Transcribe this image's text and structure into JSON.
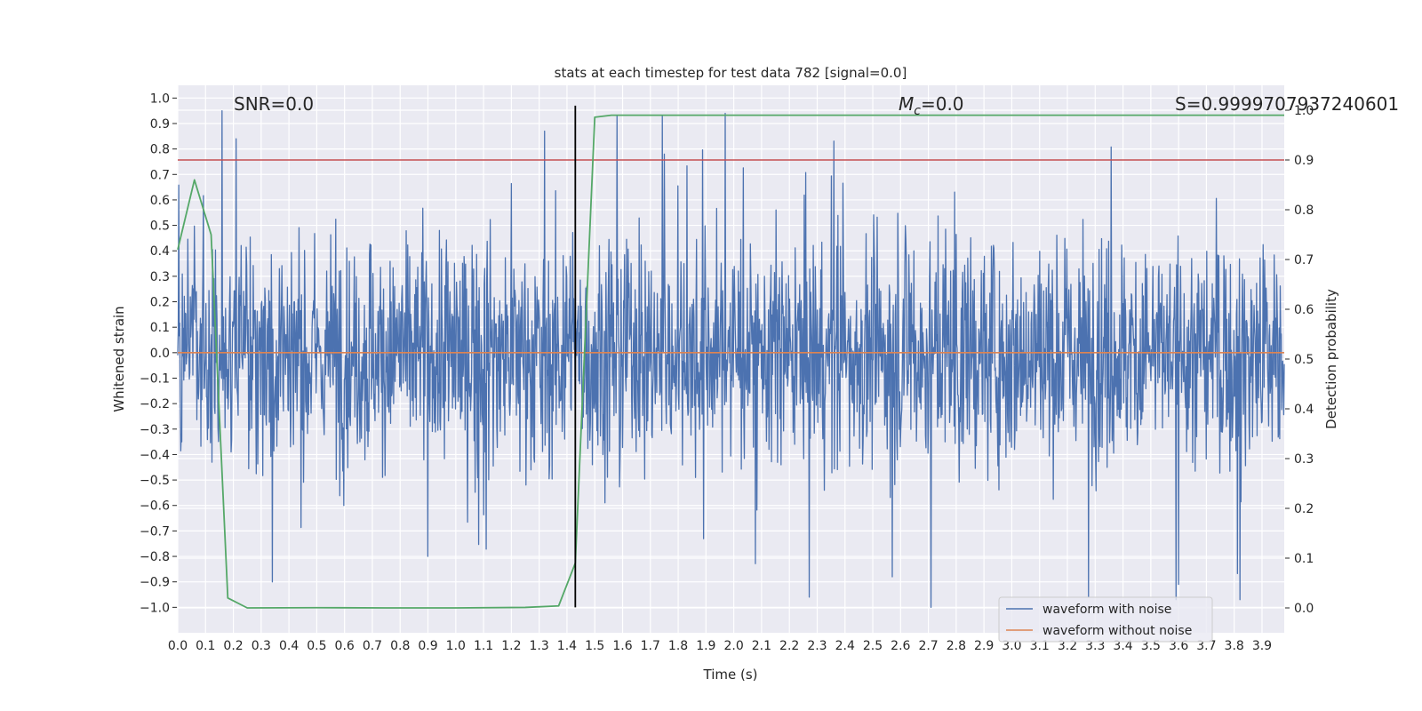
{
  "chart_data": {
    "type": "line",
    "title": "stats at each timestep for test data 782 [signal=0.0]",
    "xlabel": "Time (s)",
    "ylabel": "Whitened strain",
    "y2label": "Detection probability",
    "xlim": [
      0.0,
      3.98
    ],
    "ylim": [
      -1.1,
      1.05
    ],
    "y2lim": [
      -0.05,
      1.05
    ],
    "grid": true,
    "x_ticks": [
      "0.0",
      "0.1",
      "0.2",
      "0.3",
      "0.4",
      "0.5",
      "0.6",
      "0.7",
      "0.8",
      "0.9",
      "1.0",
      "1.1",
      "1.2",
      "1.3",
      "1.4",
      "1.5",
      "1.6",
      "1.7",
      "1.8",
      "1.9",
      "2.0",
      "2.1",
      "2.2",
      "2.3",
      "2.4",
      "2.5",
      "2.6",
      "2.7",
      "2.8",
      "2.9",
      "3.0",
      "3.1",
      "3.2",
      "3.3",
      "3.4",
      "3.5",
      "3.6",
      "3.7",
      "3.8",
      "3.9"
    ],
    "y_ticks": [
      "1.0",
      "0.9",
      "0.8",
      "0.7",
      "0.6",
      "0.5",
      "0.4",
      "0.3",
      "0.2",
      "0.1",
      "0.0",
      "−0.1",
      "−0.2",
      "−0.3",
      "−0.4",
      "−0.5",
      "−0.6",
      "−0.7",
      "−0.8",
      "−0.9",
      "−1.0"
    ],
    "y2_ticks": [
      "1.0",
      "0.9",
      "0.8",
      "0.7",
      "0.6",
      "0.5",
      "0.4",
      "0.3",
      "0.2",
      "0.1",
      "0.0"
    ],
    "annotations": {
      "snr": "SNR=0.0",
      "mc_symbol": "M",
      "mc_sub": "c",
      "mc_value": "=0.0",
      "s_value": "S=0.9999707937240601"
    },
    "threshold": {
      "axis": "y2",
      "value": 0.9,
      "color": "#c44e52"
    },
    "marker_line": {
      "x": 1.43,
      "y_range": [
        -1.0,
        0.97
      ],
      "color": "#000000"
    },
    "series": [
      {
        "name": "waveform with noise",
        "axis": "y",
        "color": "#4c72b0",
        "kind": "noise",
        "std": 0.22,
        "peaks": [
          [
            0.16,
            0.95
          ],
          [
            0.21,
            0.84
          ],
          [
            1.32,
            0.87
          ],
          [
            1.75,
            0.78
          ],
          [
            1.97,
            0.94
          ],
          [
            2.71,
            -1.0
          ],
          [
            3.59,
            -0.97
          ],
          [
            3.82,
            -0.97
          ],
          [
            3.6,
            -0.91
          ],
          [
            2.57,
            -0.88
          ],
          [
            0.34,
            -0.9
          ],
          [
            0.9,
            -0.8
          ]
        ]
      },
      {
        "name": "waveform without noise",
        "axis": "y",
        "color": "#dd8452",
        "kind": "line",
        "x": [
          0.0,
          3.98
        ],
        "values": [
          0.0,
          0.0
        ]
      },
      {
        "name": "detection probability",
        "axis": "y2",
        "color": "#55a868",
        "kind": "line",
        "x": [
          0.0,
          0.06,
          0.12,
          0.18,
          0.25,
          0.5,
          0.75,
          1.0,
          1.25,
          1.37,
          1.43,
          1.5,
          1.56,
          3.98
        ],
        "values": [
          0.72,
          0.86,
          0.75,
          0.02,
          0.0,
          0.0005,
          0.0,
          0.0,
          0.001,
          0.004,
          0.09,
          0.986,
          0.99,
          0.99
        ]
      }
    ],
    "legend": [
      "waveform with noise",
      "waveform without noise"
    ],
    "legend_position": "lower-right"
  }
}
